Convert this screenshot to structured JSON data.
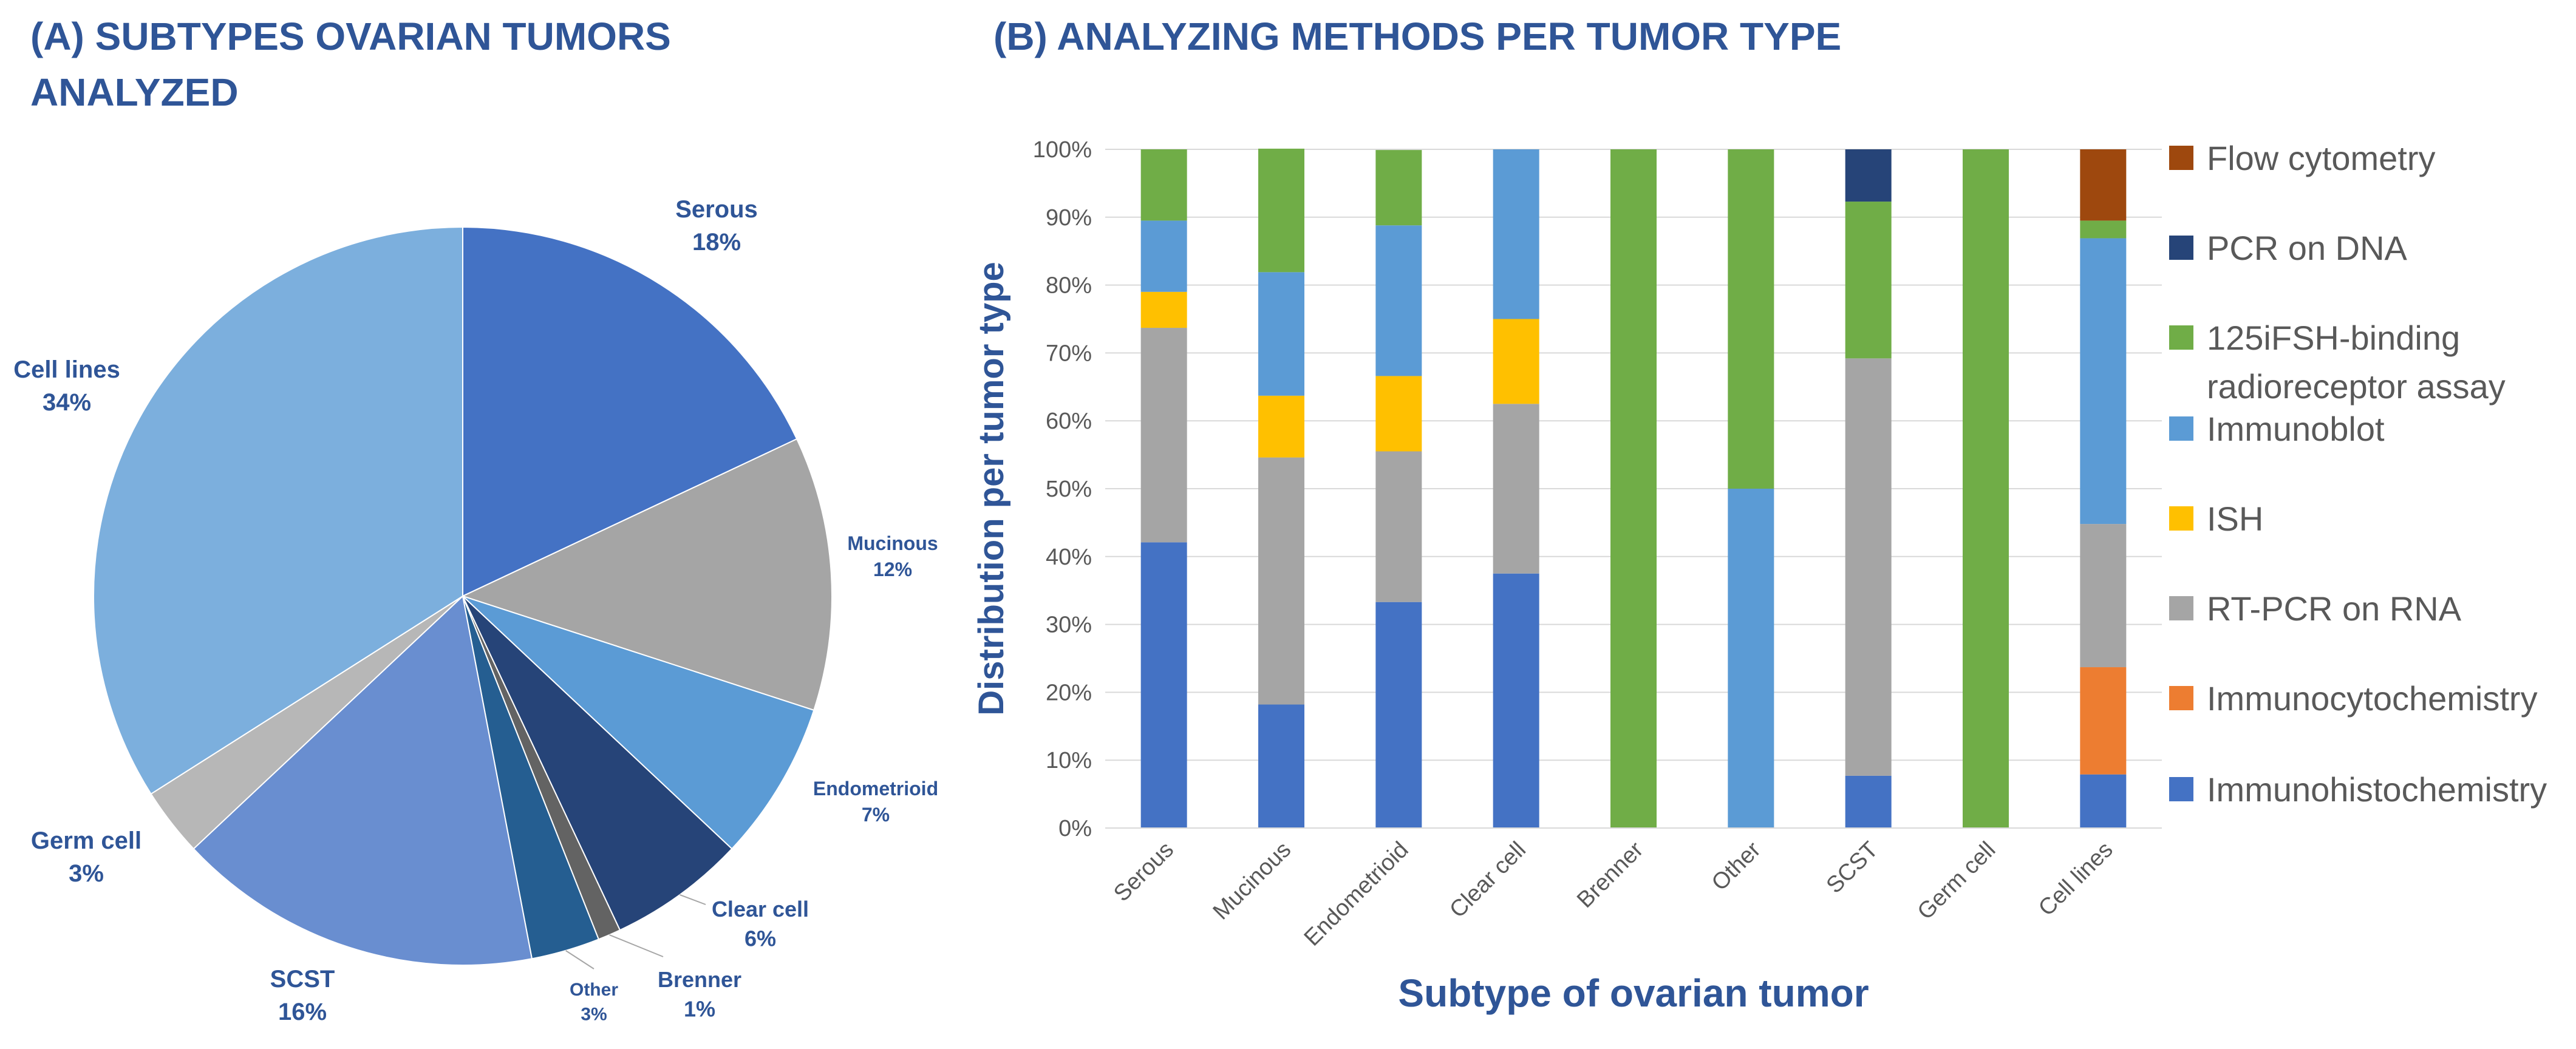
{
  "panel_a": {
    "title_line1": "(A) SUBTYPES OVARIAN TUMORS",
    "title_line2": "ANALYZED"
  },
  "panel_b": {
    "title": "(B) ANALYZING METHODS PER TUMOR TYPE"
  },
  "chart_data": [
    {
      "type": "pie",
      "title": "(A) SUBTYPES OVARIAN TUMORS ANALYZED",
      "start": "12 o'clock, clockwise",
      "slices": [
        {
          "label": "Serous",
          "value": 18,
          "pct_label": "18%",
          "color": "#4472C4"
        },
        {
          "label": "Mucinous",
          "value": 12,
          "pct_label": "12%",
          "color": "#A5A5A5"
        },
        {
          "label": "Endometrioid",
          "value": 7,
          "pct_label": "7%",
          "color": "#5B9BD5"
        },
        {
          "label": "Clear cell",
          "value": 6,
          "pct_label": "6%",
          "color": "#264478"
        },
        {
          "label": "Brenner",
          "value": 1,
          "pct_label": "1%",
          "color": "#636363"
        },
        {
          "label": "Other",
          "value": 3,
          "pct_label": "3%",
          "color": "#255E91"
        },
        {
          "label": "SCST",
          "value": 16,
          "pct_label": "16%",
          "color": "#698ED0"
        },
        {
          "label": "Germ cell",
          "value": 3,
          "pct_label": "3%",
          "color": "#B7B7B7"
        },
        {
          "label": "Cell lines",
          "value": 34,
          "pct_label": "34%",
          "color": "#7CAFDD"
        }
      ]
    },
    {
      "type": "bar",
      "stacked": true,
      "title": "(B) ANALYZING METHODS PER TUMOR TYPE",
      "xlabel": "Subtype of ovarian tumor",
      "ylabel": "Distribution per tumor type",
      "ylim": [
        0,
        100
      ],
      "yticks": [
        "0%",
        "10%",
        "20%",
        "30%",
        "40%",
        "50%",
        "60%",
        "70%",
        "80%",
        "90%",
        "100%"
      ],
      "categories": [
        "Serous",
        "Mucinous",
        "Endometrioid",
        "Clear cell",
        "Brenner",
        "Other",
        "SCST",
        "Germ cell",
        "Cell lines"
      ],
      "series": [
        {
          "name": "Immunohistochemistry",
          "color": "#4472C4",
          "values": [
            42.1,
            18.2,
            33.3,
            37.5,
            0,
            0,
            7.7,
            0,
            7.9
          ]
        },
        {
          "name": "Immunocytochemistry",
          "color": "#ED7D31",
          "values": [
            0,
            0,
            0,
            0,
            0,
            0,
            0,
            0,
            15.8
          ]
        },
        {
          "name": "RT-PCR on RNA",
          "color": "#A5A5A5",
          "values": [
            31.6,
            36.4,
            22.2,
            25.0,
            0,
            0,
            61.5,
            0,
            21.1
          ]
        },
        {
          "name": "ISH",
          "color": "#FFC000",
          "values": [
            5.3,
            9.1,
            11.1,
            12.5,
            0,
            0,
            0,
            0,
            0
          ]
        },
        {
          "name": "Immunoblot",
          "color": "#5B9BD5",
          "values": [
            10.5,
            18.2,
            22.2,
            25.0,
            0,
            50.0,
            0,
            0,
            42.1
          ]
        },
        {
          "name": "125iFSH-binding radioreceptor assay",
          "color": "#70AD47",
          "values": [
            10.5,
            18.2,
            11.1,
            0,
            100,
            50.0,
            23.1,
            100,
            2.6
          ]
        },
        {
          "name": "PCR on DNA",
          "color": "#264478",
          "values": [
            0,
            0,
            0,
            0,
            0,
            0,
            7.7,
            0,
            0
          ]
        },
        {
          "name": "Flow cytometry",
          "color": "#9E480E",
          "values": [
            0,
            0,
            0,
            0,
            0,
            0,
            0,
            0,
            10.5
          ]
        }
      ],
      "legend": {
        "position": "right",
        "order": [
          "Flow cytometry",
          "PCR on DNA",
          "125iFSH-binding radioreceptor assay",
          "Immunoblot",
          "ISH",
          "RT-PCR on RNA",
          "Immunocytochemistry",
          "Immunohistochemistry"
        ],
        "display_lines": {
          "125iFSH-binding radioreceptor assay": [
            "125iFSH-binding",
            "radioreceptor assay"
          ]
        }
      }
    }
  ]
}
